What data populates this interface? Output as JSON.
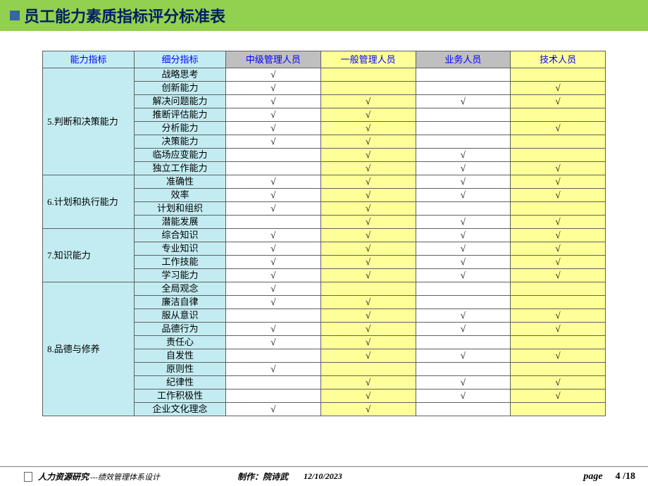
{
  "colors": {
    "header_bg": "#92d050",
    "title_color": "#002060",
    "bullet_color": "#3764a3",
    "th_category_bg": "#c3ecf2",
    "th_role_mid_bg": "#bfbfbf",
    "th_role_gen_bg": "#ffff99",
    "th_role_biz_bg": "#bfbfbf",
    "th_role_tech_bg": "#ffff99",
    "cell_cat_bg": "#c3ecf2",
    "cell_mid_bg": "#ffffff",
    "cell_gen_bg": "#ffff99",
    "cell_biz_bg": "#ffffff",
    "cell_tech_bg": "#ffff99",
    "header_text": "#0000ff",
    "role_header_text": "#0000ff",
    "border": "#606060"
  },
  "title": "员工能力素质指标评分标准表",
  "headers": {
    "cat": "能力指标",
    "sub": "细分指标",
    "roles": [
      "中级管理人员",
      "一般管理人员",
      "业务人员",
      "技术人员"
    ]
  },
  "check": "√",
  "groups": [
    {
      "label": "5.判断和决策能力",
      "rows": [
        {
          "sub": "战略思考",
          "marks": [
            1,
            0,
            0,
            0
          ]
        },
        {
          "sub": "创新能力",
          "marks": [
            1,
            0,
            0,
            1
          ]
        },
        {
          "sub": "解决问题能力",
          "marks": [
            1,
            1,
            1,
            1
          ]
        },
        {
          "sub": "推断评估能力",
          "marks": [
            1,
            1,
            0,
            0
          ]
        },
        {
          "sub": "分析能力",
          "marks": [
            1,
            1,
            0,
            1
          ]
        },
        {
          "sub": "决策能力",
          "marks": [
            1,
            1,
            0,
            0
          ]
        },
        {
          "sub": "临场应变能力",
          "marks": [
            0,
            1,
            1,
            0
          ]
        },
        {
          "sub": "独立工作能力",
          "marks": [
            0,
            1,
            1,
            1
          ]
        }
      ]
    },
    {
      "label": "6.计划和执行能力",
      "rows": [
        {
          "sub": "准确性",
          "marks": [
            1,
            1,
            1,
            1
          ]
        },
        {
          "sub": "效率",
          "marks": [
            1,
            1,
            1,
            1
          ]
        },
        {
          "sub": "计划和组织",
          "marks": [
            1,
            1,
            0,
            0
          ]
        },
        {
          "sub": "潜能发展",
          "marks": [
            0,
            1,
            1,
            1
          ]
        }
      ]
    },
    {
      "label": "7.知识能力",
      "rows": [
        {
          "sub": "综合知识",
          "marks": [
            1,
            1,
            1,
            1
          ]
        },
        {
          "sub": "专业知识",
          "marks": [
            1,
            1,
            1,
            1
          ]
        },
        {
          "sub": "工作技能",
          "marks": [
            1,
            1,
            1,
            1
          ]
        },
        {
          "sub": "学习能力",
          "marks": [
            1,
            1,
            1,
            1
          ]
        }
      ]
    },
    {
      "label": "8.品德与修养",
      "rows": [
        {
          "sub": "全局观念",
          "marks": [
            1,
            0,
            0,
            0
          ]
        },
        {
          "sub": "廉洁自律",
          "marks": [
            1,
            1,
            0,
            0
          ]
        },
        {
          "sub": "服从意识",
          "marks": [
            0,
            1,
            1,
            1
          ]
        },
        {
          "sub": "品德行为",
          "marks": [
            1,
            1,
            1,
            1
          ]
        },
        {
          "sub": "责任心",
          "marks": [
            1,
            1,
            0,
            0
          ]
        },
        {
          "sub": "自发性",
          "marks": [
            0,
            1,
            1,
            1
          ]
        },
        {
          "sub": "原则性",
          "marks": [
            1,
            0,
            0,
            0
          ]
        },
        {
          "sub": "纪律性",
          "marks": [
            0,
            1,
            1,
            1
          ]
        },
        {
          "sub": "工作积极性",
          "marks": [
            0,
            1,
            1,
            1
          ]
        },
        {
          "sub": "企业文化理念",
          "marks": [
            1,
            1,
            0,
            0
          ]
        }
      ]
    }
  ],
  "footer": {
    "title": "人力资源研究",
    "subtitle": "---绩效管理体系设计",
    "author_label": "制作：",
    "author_name": "院诗武",
    "date": "12/10/2023",
    "page_label": "page",
    "page_current": "4",
    "page_sep": " /",
    "page_total": "18"
  }
}
